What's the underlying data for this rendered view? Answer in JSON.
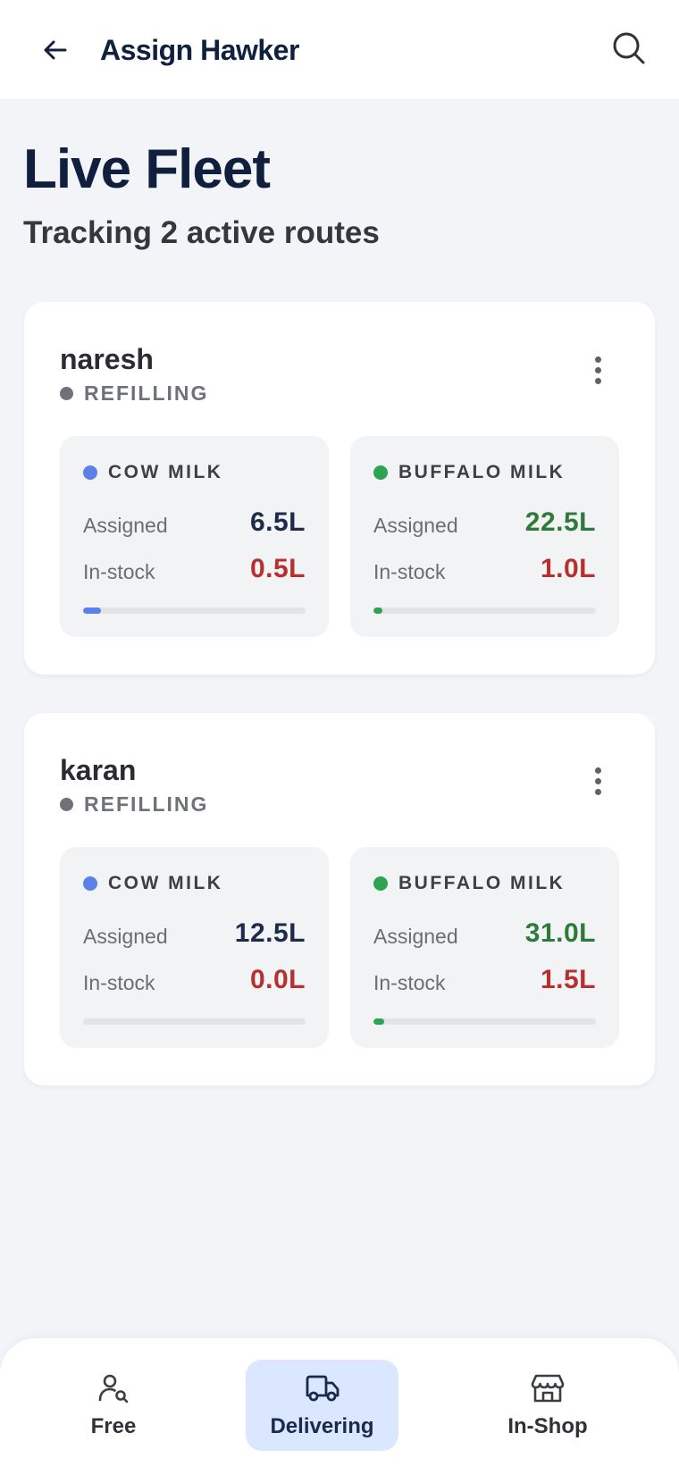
{
  "header": {
    "title": "Assign Hawker",
    "back_icon": "arrow-left-icon",
    "search_icon": "search-icon"
  },
  "page": {
    "title": "Live Fleet",
    "subtitle": "Tracking 2 active routes"
  },
  "colors": {
    "navy": "#14203a",
    "cow_dot": "#5b80ea",
    "buffalo_dot": "#2ea352",
    "cow_assigned_value": "#1e2a4a",
    "buffalo_assigned_value": "#2d7a3a",
    "instock_value": "#b5302f",
    "active_tab_bg": "#dbe7ff"
  },
  "hawkers": [
    {
      "name": "naresh",
      "status": "REFILLING",
      "menu_icon": "more-vertical-icon",
      "cow": {
        "label": "COW MILK",
        "assigned_label": "Assigned",
        "assigned": "6.5L",
        "instock_label": "In-stock",
        "instock": "0.5L",
        "progress": 0.08
      },
      "buffalo": {
        "label": "BUFFALO MILK",
        "assigned_label": "Assigned",
        "assigned": "22.5L",
        "instock_label": "In-stock",
        "instock": "1.0L",
        "progress": 0.04
      }
    },
    {
      "name": "karan",
      "status": "REFILLING",
      "menu_icon": "more-vertical-icon",
      "cow": {
        "label": "COW MILK",
        "assigned_label": "Assigned",
        "assigned": "12.5L",
        "instock_label": "In-stock",
        "instock": "0.0L",
        "progress": 0.0
      },
      "buffalo": {
        "label": "BUFFALO MILK",
        "assigned_label": "Assigned",
        "assigned": "31.0L",
        "instock_label": "In-stock",
        "instock": "1.5L",
        "progress": 0.05
      }
    }
  ],
  "nav": {
    "items": [
      {
        "label": "Free",
        "icon": "user-search-icon",
        "active": false
      },
      {
        "label": "Delivering",
        "icon": "truck-icon",
        "active": true
      },
      {
        "label": "In-Shop",
        "icon": "store-icon",
        "active": false
      }
    ]
  }
}
